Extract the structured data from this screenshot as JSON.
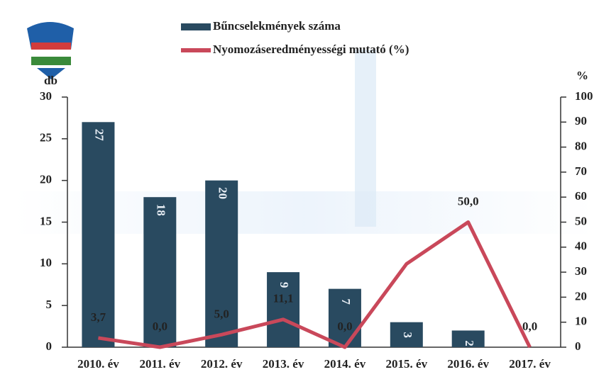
{
  "chart_data": {
    "type": "bar",
    "categories": [
      "2010. év",
      "2011. év",
      "2012. év",
      "2013. év",
      "2014. év",
      "2015. év",
      "2016. év",
      "2017. év"
    ],
    "series": [
      {
        "name": "Bűncselekmények száma",
        "color": "#294a60",
        "values": [
          27,
          18,
          20,
          9,
          7,
          3,
          2,
          null
        ]
      },
      {
        "name": "Nyomozáseredményességi mutató (%)",
        "color": "#c9485a",
        "type": "line",
        "axis": "y2",
        "values": [
          3.7,
          0.0,
          5.0,
          11.1,
          0.0,
          33.3,
          50.0,
          0.0
        ],
        "value_labels": [
          "3,7",
          "0,0",
          "5,0",
          "11,1",
          "0,0",
          null,
          "50,0",
          "0,0"
        ]
      }
    ],
    "y_label": "db",
    "y2_label": "%",
    "ylim": [
      0,
      30
    ],
    "yticks": [
      0,
      5,
      10,
      15,
      20,
      25,
      30
    ],
    "y2lim": [
      0,
      100
    ],
    "y2ticks": [
      0,
      10,
      20,
      30,
      40,
      50,
      60,
      70,
      80,
      90,
      100
    ]
  }
}
